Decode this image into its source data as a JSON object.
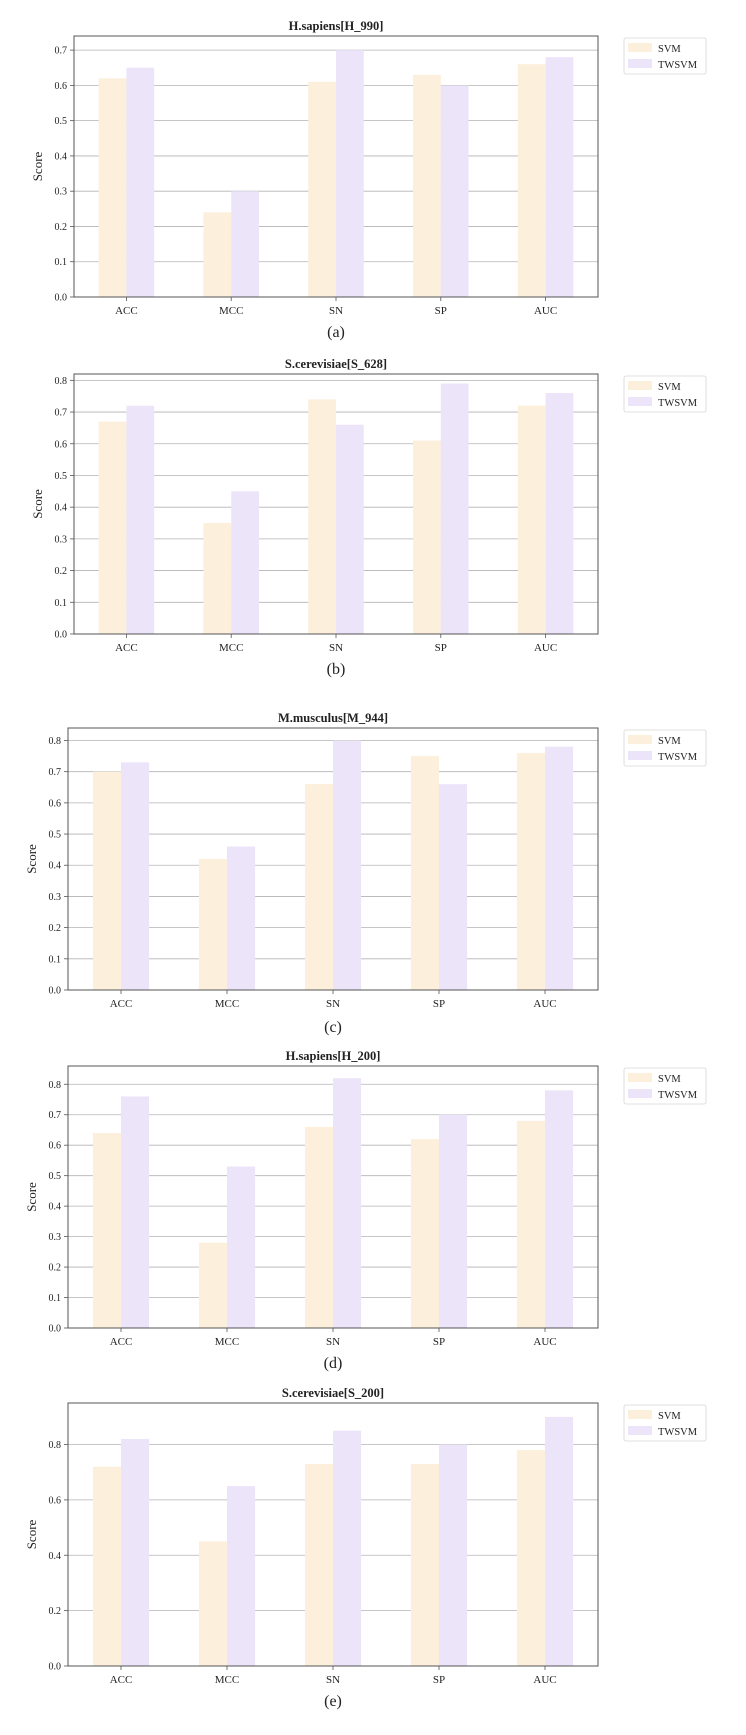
{
  "colors": {
    "svm": "#fcefdc",
    "twsvm": "#ece4f9",
    "grid": "#b3b3b3",
    "axis": "#555555",
    "text": "#222222"
  },
  "chart_data": [
    {
      "type": "bar",
      "title": "H.sapiens[H_990]",
      "caption": "(a)",
      "ylabel": "Score",
      "categories": [
        "ACC",
        "MCC",
        "SN",
        "SP",
        "AUC"
      ],
      "ylim": [
        0,
        0.74
      ],
      "yticks": [
        "0.0",
        "0.1",
        "0.2",
        "0.3",
        "0.4",
        "0.5",
        "0.6",
        "0.7"
      ],
      "grid": true,
      "legend": "outside-top-right",
      "series": [
        {
          "name": "SVM",
          "values": [
            0.62,
            0.24,
            0.61,
            0.63,
            0.66
          ]
        },
        {
          "name": "TWSVM",
          "values": [
            0.65,
            0.3,
            0.7,
            0.6,
            0.68
          ]
        }
      ]
    },
    {
      "type": "bar",
      "title": "S.cerevisiae[S_628]",
      "caption": "(b)",
      "ylabel": "Score",
      "categories": [
        "ACC",
        "MCC",
        "SN",
        "SP",
        "AUC"
      ],
      "ylim": [
        0,
        0.82
      ],
      "yticks": [
        "0.0",
        "0.1",
        "0.2",
        "0.3",
        "0.4",
        "0.5",
        "0.6",
        "0.7",
        "0.8"
      ],
      "grid": true,
      "legend": "outside-top-right",
      "series": [
        {
          "name": "SVM",
          "values": [
            0.67,
            0.35,
            0.74,
            0.61,
            0.72
          ]
        },
        {
          "name": "TWSVM",
          "values": [
            0.72,
            0.45,
            0.66,
            0.79,
            0.76
          ]
        }
      ]
    },
    {
      "type": "bar",
      "title": "M.musculus[M_944]",
      "caption": "(c)",
      "ylabel": "Score",
      "categories": [
        "ACC",
        "MCC",
        "SN",
        "SP",
        "AUC"
      ],
      "ylim": [
        0,
        0.84
      ],
      "yticks": [
        "0.0",
        "0.1",
        "0.2",
        "0.3",
        "0.4",
        "0.5",
        "0.6",
        "0.7",
        "0.8"
      ],
      "grid": true,
      "legend": "outside-top-right",
      "series": [
        {
          "name": "SVM",
          "values": [
            0.7,
            0.42,
            0.66,
            0.75,
            0.76
          ]
        },
        {
          "name": "TWSVM",
          "values": [
            0.73,
            0.46,
            0.8,
            0.66,
            0.78
          ]
        }
      ]
    },
    {
      "type": "bar",
      "title": "H.sapiens[H_200]",
      "caption": "(d)",
      "ylabel": "Score",
      "categories": [
        "ACC",
        "MCC",
        "SN",
        "SP",
        "AUC"
      ],
      "ylim": [
        0,
        0.86
      ],
      "yticks": [
        "0.0",
        "0.1",
        "0.2",
        "0.3",
        "0.4",
        "0.5",
        "0.6",
        "0.7",
        "0.8"
      ],
      "grid": true,
      "legend": "outside-top-right",
      "series": [
        {
          "name": "SVM",
          "values": [
            0.64,
            0.28,
            0.66,
            0.62,
            0.68
          ]
        },
        {
          "name": "TWSVM",
          "values": [
            0.76,
            0.53,
            0.82,
            0.7,
            0.78
          ]
        }
      ]
    },
    {
      "type": "bar",
      "title": "S.cerevisiae[S_200]",
      "caption": "(e)",
      "ylabel": "Score",
      "categories": [
        "ACC",
        "MCC",
        "SN",
        "SP",
        "AUC"
      ],
      "ylim": [
        0,
        0.95
      ],
      "yticks": [
        "0.0",
        "0.2",
        "0.4",
        "0.6",
        "0.8"
      ],
      "grid": true,
      "legend": "outside-top-right",
      "series": [
        {
          "name": "SVM",
          "values": [
            0.72,
            0.45,
            0.73,
            0.73,
            0.78
          ]
        },
        {
          "name": "TWSVM",
          "values": [
            0.82,
            0.65,
            0.85,
            0.8,
            0.9
          ]
        }
      ]
    }
  ]
}
